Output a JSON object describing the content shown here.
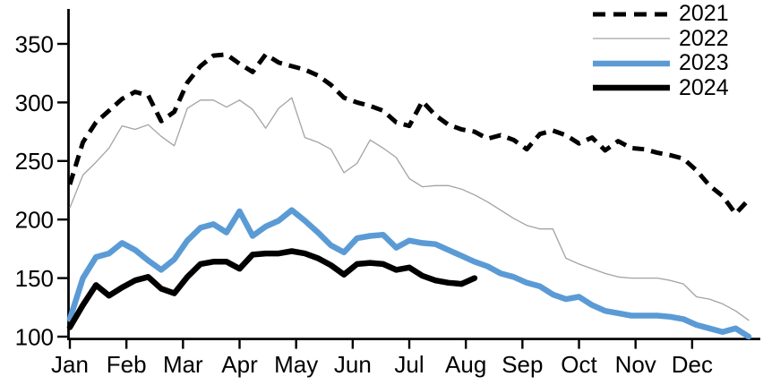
{
  "chart_data": {
    "type": "line",
    "title": "",
    "x_unit": "weekly points across one calendar year",
    "x_axis": {
      "tick_labels": [
        "Jan",
        "Feb",
        "Mar",
        "Apr",
        "May",
        "Jun",
        "Jul",
        "Aug",
        "Sep",
        "Oct",
        "Nov",
        "Dec"
      ]
    },
    "y_axis": {
      "tick_labels": [
        350,
        300,
        250,
        200,
        150,
        100
      ],
      "range": [
        100,
        350
      ],
      "grid": "off"
    },
    "legend": {
      "position": "top-right",
      "entries": [
        "2021",
        "2022",
        "2023",
        "2024"
      ]
    },
    "series": [
      {
        "name": "2021",
        "color": "#000000",
        "style": "dashed",
        "width": 5,
        "values": [
          230,
          266,
          283,
          293,
          303,
          309,
          306,
          284,
          292,
          317,
          331,
          340,
          341,
          333,
          326,
          341,
          334,
          331,
          328,
          323,
          315,
          304,
          300,
          297,
          293,
          283,
          280,
          301,
          289,
          281,
          277,
          275,
          269,
          272,
          268,
          260,
          273,
          276,
          272,
          265,
          270,
          259,
          267,
          261,
          260,
          257,
          255,
          252,
          242,
          229,
          220,
          205,
          217
        ]
      },
      {
        "name": "2022",
        "color": "#a3a3a3",
        "style": "solid",
        "width": 1.3,
        "values": [
          210,
          238,
          249,
          261,
          280,
          277,
          281,
          271,
          263,
          295,
          302,
          302,
          296,
          302,
          294,
          278,
          295,
          304,
          270,
          266,
          260,
          240,
          248,
          268,
          261,
          253,
          235,
          228,
          229,
          229,
          226,
          221,
          215,
          208,
          201,
          195,
          192,
          192,
          167,
          162,
          158,
          154,
          151,
          150,
          150,
          150,
          148,
          145,
          134,
          132,
          128,
          122,
          114
        ]
      },
      {
        "name": "2023",
        "color": "#5b9bd5",
        "style": "solid",
        "width": 6.5,
        "values": [
          115,
          150,
          168,
          171,
          180,
          174,
          165,
          157,
          166,
          182,
          193,
          196,
          189,
          207,
          186,
          194,
          199,
          208,
          199,
          189,
          178,
          172,
          184,
          186,
          187,
          176,
          182,
          180,
          179,
          174,
          169,
          164,
          160,
          154,
          151,
          146,
          143,
          136,
          132,
          134,
          127,
          122,
          120,
          118,
          118,
          118,
          117,
          115,
          110,
          107,
          104,
          107,
          100
        ]
      },
      {
        "name": "2024",
        "color": "#000000",
        "style": "solid",
        "width": 6.5,
        "values": [
          108,
          127,
          144,
          135,
          142,
          148,
          151,
          141,
          137,
          151,
          162,
          164,
          164,
          158,
          170,
          171,
          171,
          173,
          171,
          167,
          161,
          153,
          162,
          163,
          162,
          157,
          159,
          152,
          148,
          146,
          145,
          150
        ]
      }
    ]
  }
}
